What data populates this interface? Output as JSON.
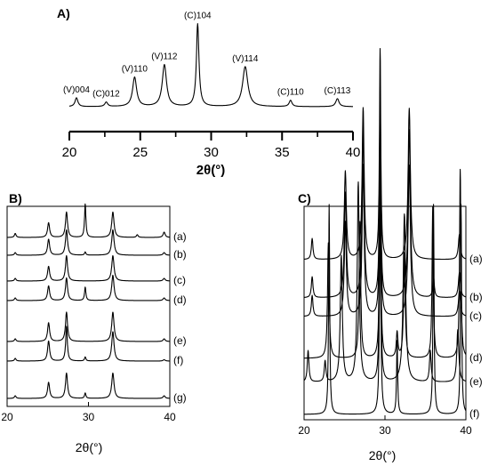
{
  "chart_data": [
    {
      "type": "line",
      "panel_label": "A)",
      "xlabel": "2θ(°)",
      "xlim": [
        20,
        40
      ],
      "xticks": [
        20,
        25,
        30,
        35,
        40
      ],
      "xminor": [
        22.5,
        27.5,
        32.5,
        37.5
      ],
      "series": [
        {
          "baseline": 0.06,
          "peaks": [
            {
              "x": 20.5,
              "h": 0.1,
              "w": 0.12,
              "label": "(V)004"
            },
            {
              "x": 22.6,
              "h": 0.05,
              "w": 0.12,
              "label": "(C)012"
            },
            {
              "x": 24.6,
              "h": 0.33,
              "w": 0.17,
              "label": "(V)110"
            },
            {
              "x": 26.7,
              "h": 0.47,
              "w": 0.18,
              "label": "(V)112"
            },
            {
              "x": 29.05,
              "h": 0.93,
              "w": 0.11,
              "label": "(C)104"
            },
            {
              "x": 32.4,
              "h": 0.45,
              "w": 0.22,
              "label": "(V)114"
            },
            {
              "x": 35.6,
              "h": 0.07,
              "w": 0.12,
              "label": "(C)110"
            },
            {
              "x": 38.9,
              "h": 0.09,
              "w": 0.14,
              "label": "(C)113"
            }
          ]
        }
      ]
    },
    {
      "type": "line",
      "panel_label": "B)",
      "xlabel": "2θ(°)",
      "xlim": [
        20,
        40
      ],
      "xticks": [
        20,
        30,
        40
      ],
      "series": [
        {
          "name": "(a)",
          "peaks": [
            {
              "x": 21.0,
              "h": 0.15,
              "w": 0.12
            },
            {
              "x": 25.1,
              "h": 0.55,
              "w": 0.15
            },
            {
              "x": 27.3,
              "h": 0.95,
              "w": 0.15
            },
            {
              "x": 29.6,
              "h": 1.25,
              "w": 0.1
            },
            {
              "x": 33.0,
              "h": 0.95,
              "w": 0.17
            },
            {
              "x": 36.0,
              "h": 0.1,
              "w": 0.12
            },
            {
              "x": 39.3,
              "h": 0.2,
              "w": 0.15
            }
          ]
        },
        {
          "name": "(b)",
          "peaks": [
            {
              "x": 21.0,
              "h": 0.1,
              "w": 0.12
            },
            {
              "x": 25.1,
              "h": 0.6,
              "w": 0.15
            },
            {
              "x": 27.3,
              "h": 0.95,
              "w": 0.15
            },
            {
              "x": 29.6,
              "h": 0.12,
              "w": 0.1
            },
            {
              "x": 33.0,
              "h": 0.95,
              "w": 0.17
            },
            {
              "x": 39.3,
              "h": 0.1,
              "w": 0.15
            }
          ]
        },
        {
          "name": "(c)",
          "peaks": [
            {
              "x": 21.0,
              "h": 0.1,
              "w": 0.12
            },
            {
              "x": 25.1,
              "h": 0.55,
              "w": 0.15
            },
            {
              "x": 27.3,
              "h": 0.95,
              "w": 0.15
            },
            {
              "x": 33.0,
              "h": 0.95,
              "w": 0.17
            },
            {
              "x": 39.3,
              "h": 0.1,
              "w": 0.15
            }
          ]
        },
        {
          "name": "(d)",
          "peaks": [
            {
              "x": 21.0,
              "h": 0.1,
              "w": 0.12
            },
            {
              "x": 25.1,
              "h": 0.55,
              "w": 0.15
            },
            {
              "x": 27.3,
              "h": 0.85,
              "w": 0.15
            },
            {
              "x": 29.6,
              "h": 0.5,
              "w": 0.1
            },
            {
              "x": 33.0,
              "h": 0.95,
              "w": 0.17
            },
            {
              "x": 39.3,
              "h": 0.1,
              "w": 0.15
            }
          ]
        },
        {
          "name": "(e)",
          "peaks": [
            {
              "x": 21.0,
              "h": 0.1,
              "w": 0.12
            },
            {
              "x": 25.1,
              "h": 0.7,
              "w": 0.15
            },
            {
              "x": 27.3,
              "h": 1.1,
              "w": 0.15
            },
            {
              "x": 33.0,
              "h": 1.1,
              "w": 0.17
            },
            {
              "x": 39.3,
              "h": 0.1,
              "w": 0.15
            }
          ]
        },
        {
          "name": "(f)",
          "peaks": [
            {
              "x": 21.0,
              "h": 0.1,
              "w": 0.12
            },
            {
              "x": 25.1,
              "h": 0.75,
              "w": 0.15
            },
            {
              "x": 27.3,
              "h": 1.3,
              "w": 0.12
            },
            {
              "x": 29.6,
              "h": 0.15,
              "w": 0.1
            },
            {
              "x": 33.0,
              "h": 1.1,
              "w": 0.17
            },
            {
              "x": 39.3,
              "h": 0.05,
              "w": 0.15
            }
          ]
        },
        {
          "name": "(g)",
          "peaks": [
            {
              "x": 21.0,
              "h": 0.1,
              "w": 0.12
            },
            {
              "x": 25.1,
              "h": 0.6,
              "w": 0.15
            },
            {
              "x": 27.3,
              "h": 0.95,
              "w": 0.15
            },
            {
              "x": 29.6,
              "h": 0.2,
              "w": 0.1
            },
            {
              "x": 33.0,
              "h": 0.95,
              "w": 0.17
            },
            {
              "x": 39.3,
              "h": 0.1,
              "w": 0.15
            }
          ]
        }
      ]
    },
    {
      "type": "line",
      "panel_label": "C)",
      "xlabel": "2θ(°)",
      "xlim": [
        20,
        40
      ],
      "xticks": [
        20,
        30,
        40
      ],
      "series": [
        {
          "name": "(a)",
          "peaks": [
            {
              "x": 21.0,
              "h": 0.1,
              "w": 0.12
            },
            {
              "x": 25.1,
              "h": 0.42,
              "w": 0.15
            },
            {
              "x": 27.3,
              "h": 0.72,
              "w": 0.15
            },
            {
              "x": 29.4,
              "h": 1.0,
              "w": 0.1
            },
            {
              "x": 33.0,
              "h": 0.72,
              "w": 0.17
            },
            {
              "x": 39.2,
              "h": 0.12,
              "w": 0.15
            }
          ]
        },
        {
          "name": "(b)",
          "peaks": [
            {
              "x": 21.0,
              "h": 0.1,
              "w": 0.12
            },
            {
              "x": 25.1,
              "h": 0.5,
              "w": 0.15
            },
            {
              "x": 27.3,
              "h": 0.8,
              "w": 0.15
            },
            {
              "x": 29.4,
              "h": 1.0,
              "w": 0.1
            },
            {
              "x": 33.0,
              "h": 0.8,
              "w": 0.17
            },
            {
              "x": 36.0,
              "h": 0.1,
              "w": 0.12
            },
            {
              "x": 39.2,
              "h": 0.12,
              "w": 0.15
            }
          ]
        },
        {
          "name": "(c)",
          "peaks": [
            {
              "x": 21.0,
              "h": 0.1,
              "w": 0.12
            },
            {
              "x": 25.1,
              "h": 0.45,
              "w": 0.15
            },
            {
              "x": 27.3,
              "h": 0.72,
              "w": 0.15
            },
            {
              "x": 29.4,
              "h": 1.0,
              "w": 0.1
            },
            {
              "x": 33.0,
              "h": 0.72,
              "w": 0.17
            },
            {
              "x": 39.2,
              "h": 0.12,
              "w": 0.15
            }
          ]
        },
        {
          "name": "(d)",
          "peaks": [
            {
              "x": 23.0,
              "h": 0.55,
              "w": 0.12
            },
            {
              "x": 26.9,
              "h": 0.65,
              "w": 0.12
            },
            {
              "x": 29.4,
              "h": 1.0,
              "w": 0.1
            },
            {
              "x": 31.5,
              "h": 0.12,
              "w": 0.12
            },
            {
              "x": 32.4,
              "h": 0.5,
              "w": 0.12
            },
            {
              "x": 35.9,
              "h": 0.72,
              "w": 0.1
            },
            {
              "x": 39.3,
              "h": 0.9,
              "w": 0.1
            }
          ]
        },
        {
          "name": "(e)",
          "peaks": [
            {
              "x": 20.5,
              "h": 0.15,
              "w": 0.12
            },
            {
              "x": 22.6,
              "h": 0.1,
              "w": 0.12
            },
            {
              "x": 24.6,
              "h": 0.6,
              "w": 0.15
            },
            {
              "x": 26.7,
              "h": 0.95,
              "w": 0.15
            },
            {
              "x": 29.4,
              "h": 1.0,
              "w": 0.1
            },
            {
              "x": 32.4,
              "h": 0.8,
              "w": 0.18
            },
            {
              "x": 35.6,
              "h": 0.15,
              "w": 0.12
            },
            {
              "x": 39.0,
              "h": 0.25,
              "w": 0.15
            }
          ]
        },
        {
          "name": "(f)",
          "peaks": [
            {
              "x": 23.1,
              "h": 1.0,
              "w": 0.08
            },
            {
              "x": 29.4,
              "h": 1.0,
              "w": 0.1
            },
            {
              "x": 31.5,
              "h": 0.35,
              "w": 0.08
            },
            {
              "x": 36.0,
              "h": 1.0,
              "w": 0.08
            },
            {
              "x": 39.4,
              "h": 1.0,
              "w": 0.08
            }
          ]
        }
      ]
    }
  ]
}
